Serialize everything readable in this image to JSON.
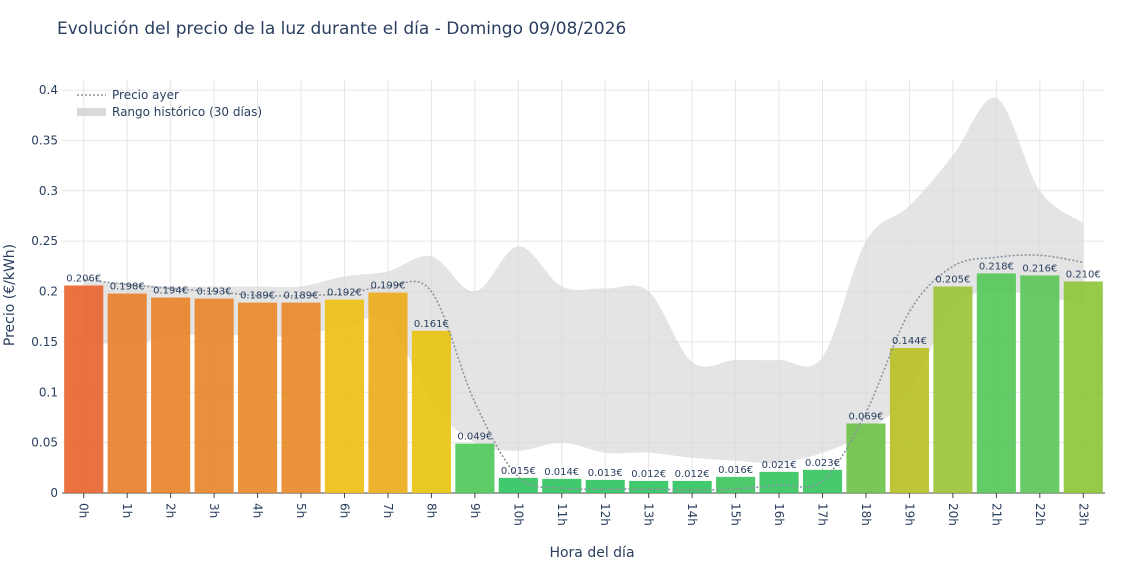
{
  "chart_data": {
    "type": "bar",
    "title": "Evolución del precio de la luz durante el día - Domingo 09/08/2026",
    "xlabel": "Hora del día",
    "ylabel": "Precio (€/kWh)",
    "ylim": [
      0,
      0.42
    ],
    "yticks": [
      0,
      0.05,
      0.1,
      0.15,
      0.2,
      0.25,
      0.3,
      0.35,
      0.4
    ],
    "ytick_labels": [
      "0",
      "0.05",
      "0.1",
      "0.15",
      "0.2",
      "0.25",
      "0.3",
      "0.35",
      "0.4"
    ],
    "grid": true,
    "legend_position": "top-left",
    "categories": [
      "0h",
      "1h",
      "2h",
      "3h",
      "4h",
      "5h",
      "6h",
      "7h",
      "8h",
      "9h",
      "10h",
      "11h",
      "12h",
      "13h",
      "14h",
      "15h",
      "16h",
      "17h",
      "18h",
      "19h",
      "20h",
      "21h",
      "22h",
      "23h"
    ],
    "values": [
      0.206,
      0.198,
      0.194,
      0.193,
      0.189,
      0.189,
      0.192,
      0.199,
      0.161,
      0.049,
      0.015,
      0.014,
      0.013,
      0.012,
      0.012,
      0.016,
      0.021,
      0.023,
      0.069,
      0.144,
      0.205,
      0.218,
      0.216,
      0.21
    ],
    "value_labels": [
      "0.206€",
      "0.198€",
      "0.194€",
      "0.193€",
      "0.189€",
      "0.189€",
      "0.192€",
      "0.199€",
      "0.161€",
      "0.049€",
      "0.015€",
      "0.014€",
      "0.013€",
      "0.012€",
      "0.012€",
      "0.016€",
      "0.021€",
      "0.023€",
      "0.069€",
      "0.144€",
      "0.205€",
      "0.218€",
      "0.216€",
      "0.210€"
    ],
    "bar_colors": [
      "#e96530",
      "#e8802b",
      "#e8842a",
      "#e8862a",
      "#e88a29",
      "#e88a29",
      "#eebf15",
      "#ebac1c",
      "#e8c412",
      "#4fc95a",
      "#32c462",
      "#32c462",
      "#32c462",
      "#32c462",
      "#32c462",
      "#3fc660",
      "#36c561",
      "#36c561",
      "#6cc24a",
      "#b9c028",
      "#9cc43a",
      "#56c85a",
      "#5cc758",
      "#8ec53a"
    ],
    "series": [
      {
        "name": "Precio ayer",
        "type": "line",
        "style": "dotted",
        "color": "#8a94a0",
        "values": [
          0.212,
          0.207,
          0.203,
          0.2,
          0.196,
          0.196,
          0.198,
          0.205,
          0.2,
          0.09,
          0.016,
          0.005,
          0.004,
          0.004,
          0.003,
          0.004,
          0.008,
          0.012,
          0.08,
          0.18,
          0.225,
          0.234,
          0.236,
          0.229
        ]
      },
      {
        "name": "Rango histórico (30 días)",
        "type": "band",
        "color": "#d9d9d9",
        "lower": [
          0.15,
          0.148,
          0.155,
          0.158,
          0.155,
          0.157,
          0.165,
          0.17,
          0.09,
          0.05,
          0.042,
          0.05,
          0.04,
          0.04,
          0.035,
          0.032,
          0.03,
          0.04,
          0.06,
          0.1,
          0.185,
          0.2,
          0.195,
          0.188
        ],
        "upper": [
          0.21,
          0.208,
          0.205,
          0.205,
          0.205,
          0.205,
          0.215,
          0.22,
          0.235,
          0.2,
          0.245,
          0.205,
          0.203,
          0.2,
          0.13,
          0.132,
          0.132,
          0.135,
          0.25,
          0.285,
          0.335,
          0.392,
          0.3,
          0.268
        ]
      }
    ]
  }
}
